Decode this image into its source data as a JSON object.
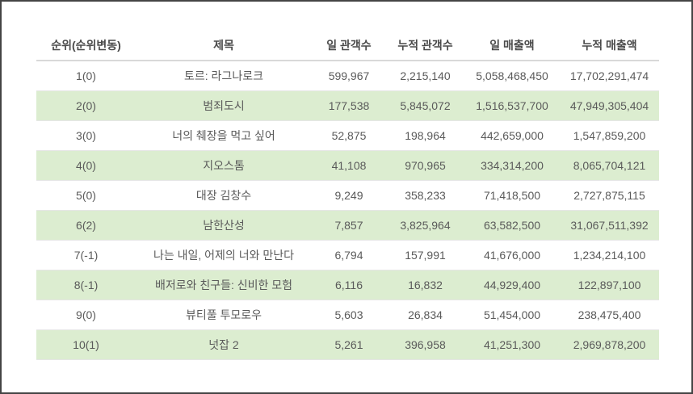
{
  "table": {
    "headers": {
      "rank": "순위(순위변동)",
      "title": "제목",
      "daily_audience": "일 관객수",
      "cumulative_audience": "누적 관객수",
      "daily_revenue": "일 매출액",
      "cumulative_revenue": "누적 매출액"
    },
    "rows": [
      {
        "rank": "1(0)",
        "title": "토르: 라그나로크",
        "daily_audience": "599,967",
        "cumulative_audience": "2,215,140",
        "daily_revenue": "5,058,468,450",
        "cumulative_revenue": "17,702,291,474"
      },
      {
        "rank": "2(0)",
        "title": "범죄도시",
        "daily_audience": "177,538",
        "cumulative_audience": "5,845,072",
        "daily_revenue": "1,516,537,700",
        "cumulative_revenue": "47,949,305,404"
      },
      {
        "rank": "3(0)",
        "title": "너의 췌장을 먹고 싶어",
        "daily_audience": "52,875",
        "cumulative_audience": "198,964",
        "daily_revenue": "442,659,000",
        "cumulative_revenue": "1,547,859,200"
      },
      {
        "rank": "4(0)",
        "title": "지오스톰",
        "daily_audience": "41,108",
        "cumulative_audience": "970,965",
        "daily_revenue": "334,314,200",
        "cumulative_revenue": "8,065,704,121"
      },
      {
        "rank": "5(0)",
        "title": "대장 김창수",
        "daily_audience": "9,249",
        "cumulative_audience": "358,233",
        "daily_revenue": "71,418,500",
        "cumulative_revenue": "2,727,875,115"
      },
      {
        "rank": "6(2)",
        "title": "남한산성",
        "daily_audience": "7,857",
        "cumulative_audience": "3,825,964",
        "daily_revenue": "63,582,500",
        "cumulative_revenue": "31,067,511,392"
      },
      {
        "rank": "7(-1)",
        "title": "나는 내일, 어제의 너와 만난다",
        "daily_audience": "6,794",
        "cumulative_audience": "157,991",
        "daily_revenue": "41,676,000",
        "cumulative_revenue": "1,234,214,100"
      },
      {
        "rank": "8(-1)",
        "title": "배저로와 친구들: 신비한 모험",
        "daily_audience": "6,116",
        "cumulative_audience": "16,832",
        "daily_revenue": "44,929,400",
        "cumulative_revenue": "122,897,100"
      },
      {
        "rank": "9(0)",
        "title": "뷰티풀 투모로우",
        "daily_audience": "5,603",
        "cumulative_audience": "26,834",
        "daily_revenue": "51,454,000",
        "cumulative_revenue": "238,475,400"
      },
      {
        "rank": "10(1)",
        "title": "넛잡 2",
        "daily_audience": "5,261",
        "cumulative_audience": "396,958",
        "daily_revenue": "41,251,300",
        "cumulative_revenue": "2,969,878,200"
      }
    ]
  },
  "colors": {
    "stripe": "#dcedd0",
    "header_text": "#4a4a4a",
    "cell_text": "#5a5a5a"
  }
}
